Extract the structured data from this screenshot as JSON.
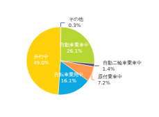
{
  "chart_data": {
    "type": "pie",
    "categories": [
      "その他",
      "自動車乗車中",
      "自動二輪車乗車中",
      "原付乗車中",
      "自転車乗用中",
      "歩行中"
    ],
    "values": [
      0.3,
      26.1,
      1.4,
      7.2,
      16.1,
      49.0
    ],
    "value_labels": [
      "0.3%",
      "26.1%",
      "1.4%",
      "7.2%",
      "16.1%",
      "49.0%"
    ],
    "data_labels": true
  }
}
